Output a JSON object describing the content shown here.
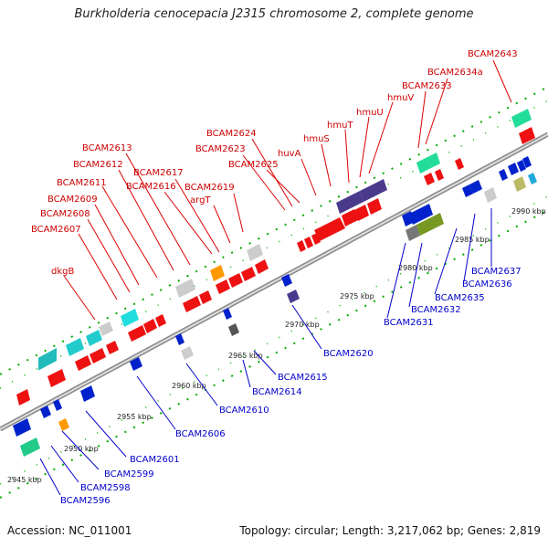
{
  "title": "Burkholderia cenocepacia J2315 chromosome 2, complete genome",
  "footer": {
    "accession": "Accession: NC_011001",
    "summary": "Topology: circular; Length: 3,217,062 bp; Genes: 2,819"
  },
  "colors": {
    "forward_label": "#cc0000",
    "reverse_label": "#0000cc",
    "backbone": "#999999",
    "ruler": "#008800"
  },
  "ticks": [
    "2945 kbp",
    "2950 kbp",
    "2955 kbp",
    "2960 kbp",
    "2965 kbp",
    "2970 kbp",
    "2975 kbp",
    "2980 kbp",
    "2985 kbp",
    "2990 kbp"
  ],
  "forward_labels": [
    "dkgB",
    "BCAM2607",
    "BCAM2608",
    "BCAM2609",
    "BCAM2611",
    "BCAM2612",
    "BCAM2613",
    "BCAM2616",
    "BCAM2617",
    "argT",
    "BCAM2619",
    "BCAM2623",
    "BCAM2624",
    "BCAM2625",
    "huvA",
    "hmuS",
    "hmuT",
    "hmuU",
    "hmuV",
    "BCAM2633",
    "BCAM2634a",
    "BCAM2643"
  ],
  "reverse_labels": [
    "BCAM2596",
    "BCAM2598",
    "BCAM2599",
    "BCAM2601",
    "BCAM2606",
    "BCAM2610",
    "BCAM2614",
    "BCAM2615",
    "BCAM2620",
    "BCAM2631",
    "BCAM2632",
    "BCAM2635",
    "BCAM2636",
    "BCAM2637"
  ]
}
